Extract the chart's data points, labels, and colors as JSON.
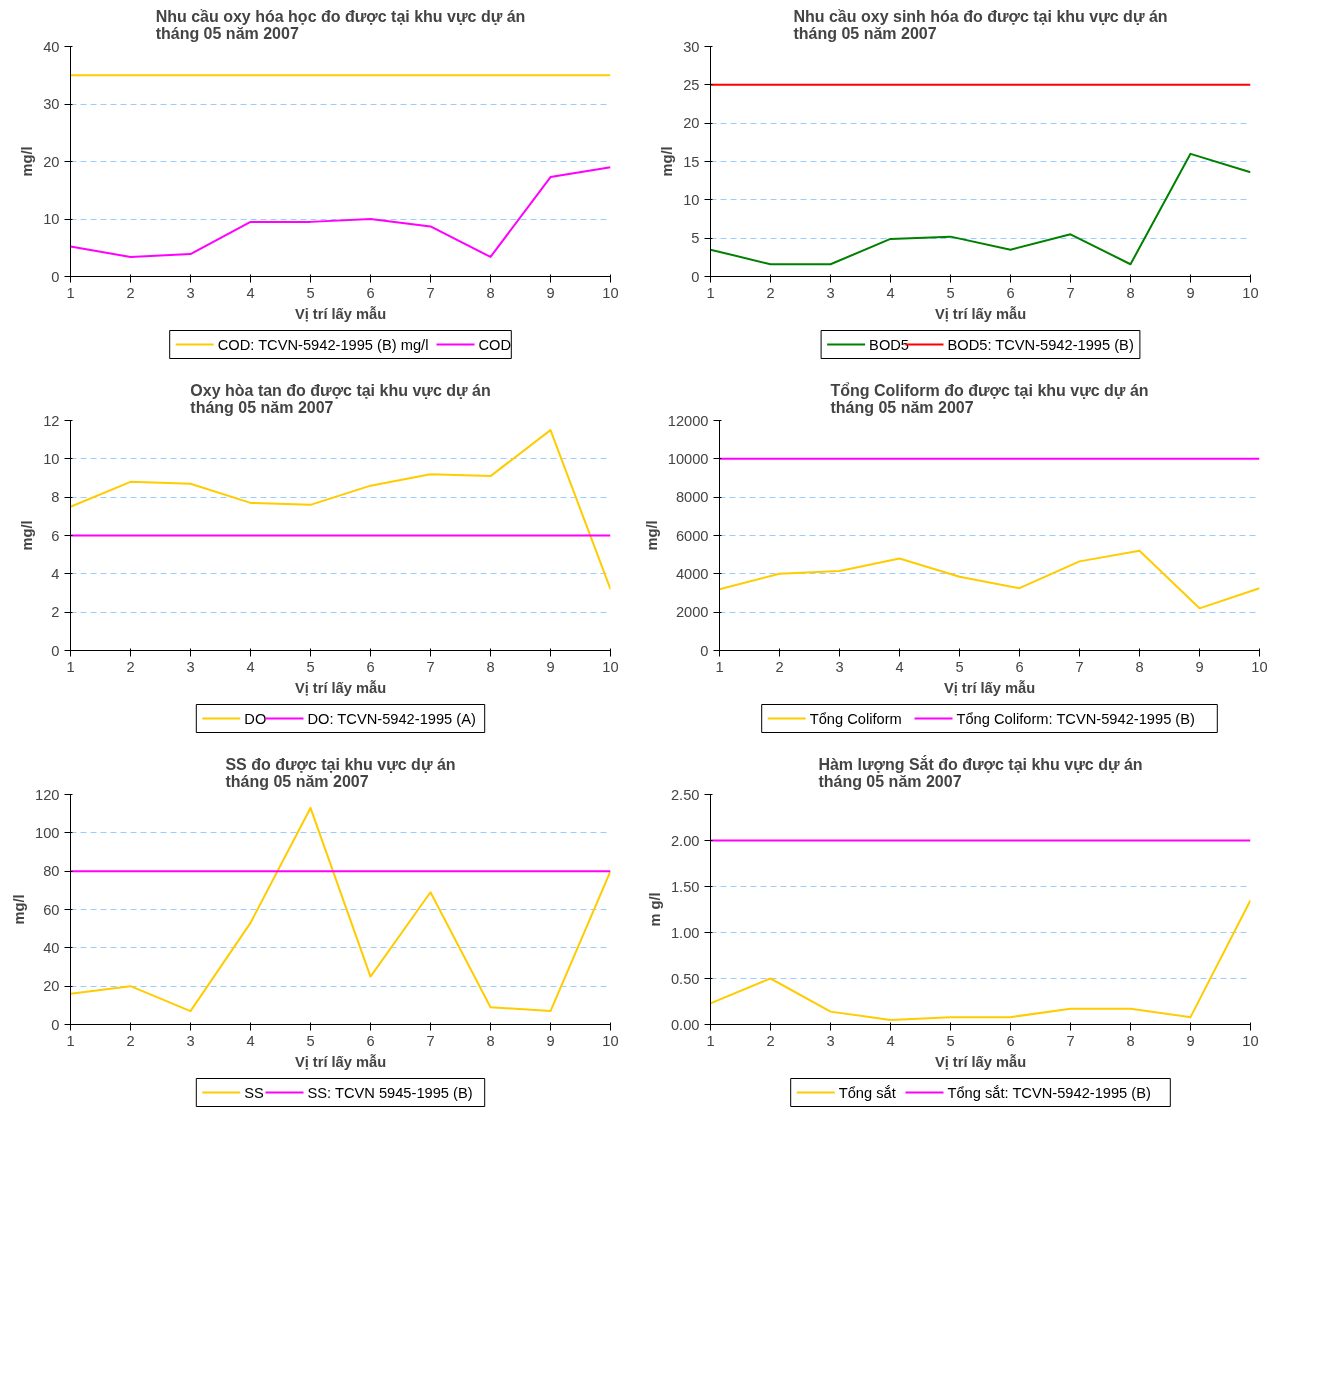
{
  "chart_data": [
    {
      "type": "line",
      "title": "Nhu cầu oxy hóa học đo được tại khu vực dự án\ntháng 05 năm 2007",
      "xlabel": "Vị trí lấy mẫu",
      "ylabel": "mg/l",
      "x": [
        1,
        2,
        3,
        4,
        5,
        6,
        7,
        8,
        9,
        10
      ],
      "xlim": [
        1,
        10
      ],
      "xticks": [
        1,
        2,
        3,
        4,
        5,
        6,
        7,
        8,
        9,
        10
      ],
      "ylim": [
        0,
        40
      ],
      "yticks": [
        0,
        10,
        20,
        30,
        40
      ],
      "grid": "y",
      "legend": "bottom",
      "marker": "none",
      "series": [
        {
          "name": "COD: TCVN-5942-1995 (B) mg/l",
          "color": "#ffcc00",
          "values": [
            35,
            35,
            35,
            35,
            35,
            35,
            35,
            35,
            35,
            35
          ]
        },
        {
          "name": "COD",
          "color": "#ff00ff",
          "values": [
            5.2,
            3.4,
            3.9,
            9.5,
            9.5,
            10,
            8.7,
            3.4,
            17.3,
            19
          ]
        }
      ]
    },
    {
      "type": "line",
      "title": "Nhu cầu oxy sinh hóa đo được tại khu vực dự án\ntháng 05 năm 2007",
      "xlabel": "Vị trí lấy mẫu",
      "ylabel": "mg/l",
      "x": [
        1,
        2,
        3,
        4,
        5,
        6,
        7,
        8,
        9,
        10
      ],
      "xlim": [
        1,
        10
      ],
      "xticks": [
        1,
        2,
        3,
        4,
        5,
        6,
        7,
        8,
        9,
        10
      ],
      "ylim": [
        0,
        30
      ],
      "yticks": [
        0,
        5,
        10,
        15,
        20,
        25,
        30
      ],
      "grid": "y",
      "legend": "bottom",
      "marker": "none",
      "series": [
        {
          "name": "BOD5",
          "color": "#008000",
          "values": [
            3.5,
            1.6,
            1.6,
            4.9,
            5.2,
            3.5,
            5.5,
            1.6,
            16,
            13.6
          ]
        },
        {
          "name": "BOD5: TCVN-5942-1995 (B)",
          "color": "#ff0000",
          "values": [
            25,
            25,
            25,
            25,
            25,
            25,
            25,
            25,
            25,
            25
          ]
        }
      ]
    },
    {
      "type": "line",
      "title": "Oxy hòa tan đo được tại khu vực dự án\ntháng 05 năm 2007",
      "xlabel": "Vị trí lấy mẫu",
      "ylabel": "mg/l",
      "x": [
        1,
        2,
        3,
        4,
        5,
        6,
        7,
        8,
        9,
        10
      ],
      "xlim": [
        1,
        10
      ],
      "xticks": [
        1,
        2,
        3,
        4,
        5,
        6,
        7,
        8,
        9,
        10
      ],
      "ylim": [
        0,
        12
      ],
      "yticks": [
        0,
        2,
        4,
        6,
        8,
        10,
        12
      ],
      "grid": "y",
      "legend": "bottom",
      "marker": "none",
      "series": [
        {
          "name": "DO",
          "color": "#ffcc00",
          "values": [
            7.5,
            8.8,
            8.7,
            7.7,
            7.6,
            8.6,
            9.2,
            9.1,
            11.5,
            3.2
          ]
        },
        {
          "name": "DO: TCVN-5942-1995 (A)",
          "color": "#ff00ff",
          "values": [
            6,
            6,
            6,
            6,
            6,
            6,
            6,
            6,
            6,
            6
          ]
        }
      ]
    },
    {
      "type": "line",
      "title": "Tổng Coliform đo được tại khu vực dự án\ntháng 05 năm 2007",
      "xlabel": "Vị trí lấy mẫu",
      "ylabel": "mg/l",
      "x": [
        1,
        2,
        3,
        4,
        5,
        6,
        7,
        8,
        9,
        10
      ],
      "xlim": [
        1,
        10
      ],
      "xticks": [
        1,
        2,
        3,
        4,
        5,
        6,
        7,
        8,
        9,
        10
      ],
      "ylim": [
        0,
        12000
      ],
      "yticks": [
        0,
        2000,
        4000,
        6000,
        8000,
        10000,
        12000
      ],
      "grid": "y",
      "legend": "bottom",
      "marker": "none",
      "series": [
        {
          "name": "Tổng Coliform",
          "color": "#ffcc00",
          "values": [
            3200,
            4000,
            4150,
            4800,
            3850,
            3250,
            4650,
            5200,
            2200,
            3250
          ]
        },
        {
          "name": "Tổng Coliform: TCVN-5942-1995 (B)",
          "color": "#ff00ff",
          "values": [
            10000,
            10000,
            10000,
            10000,
            10000,
            10000,
            10000,
            10000,
            10000,
            10000
          ]
        }
      ]
    },
    {
      "type": "line",
      "title": "SS đo được tại khu vực dự án\ntháng 05 năm 2007",
      "xlabel": "Vị trí lấy mẫu",
      "ylabel": "mg/l",
      "x": [
        1,
        2,
        3,
        4,
        5,
        6,
        7,
        8,
        9,
        10
      ],
      "xlim": [
        1,
        10
      ],
      "xticks": [
        1,
        2,
        3,
        4,
        5,
        6,
        7,
        8,
        9,
        10
      ],
      "ylim": [
        0,
        120
      ],
      "yticks": [
        0,
        20,
        40,
        60,
        80,
        100,
        120
      ],
      "grid": "y",
      "legend": "bottom",
      "marker": "none",
      "series": [
        {
          "name": "SS",
          "color": "#ffcc00",
          "values": [
            16,
            20,
            7,
            53,
            113,
            25,
            69,
            9,
            7,
            80
          ]
        },
        {
          "name": "SS: TCVN 5945-1995 (B)",
          "color": "#ff00ff",
          "values": [
            80,
            80,
            80,
            80,
            80,
            80,
            80,
            80,
            80,
            80
          ]
        }
      ]
    },
    {
      "type": "line",
      "title": "Hàm lượng Sắt đo được tại khu vực dự án\ntháng 05 năm 2007",
      "xlabel": "Vị trí lấy mẫu",
      "ylabel": "m g/l",
      "x": [
        1,
        2,
        3,
        4,
        5,
        6,
        7,
        8,
        9,
        10
      ],
      "xlim": [
        1,
        10
      ],
      "xticks": [
        1,
        2,
        3,
        4,
        5,
        6,
        7,
        8,
        9,
        10
      ],
      "ylim": [
        0,
        2.5
      ],
      "yticks": [
        {
          "value": 0,
          "label": "0.00"
        },
        {
          "value": 0.5,
          "label": "0.50"
        },
        {
          "value": 1,
          "label": "1.00"
        },
        {
          "value": 1.5,
          "label": "1.50"
        },
        {
          "value": 2,
          "label": "2.00"
        },
        {
          "value": 2.5,
          "label": "2.50"
        }
      ],
      "grid": "y",
      "legend": "bottom",
      "marker": "none",
      "series": [
        {
          "name": "Tổng sắt",
          "color": "#ffcc00",
          "values": [
            0.23,
            0.5,
            0.14,
            0.05,
            0.08,
            0.08,
            0.17,
            0.17,
            0.08,
            1.35
          ]
        },
        {
          "name": "Tổng sắt: TCVN-5942-1995 (B)",
          "color": "#ff00ff",
          "values": [
            2,
            2,
            2,
            2,
            2,
            2,
            2,
            2,
            2,
            2
          ]
        }
      ]
    }
  ]
}
